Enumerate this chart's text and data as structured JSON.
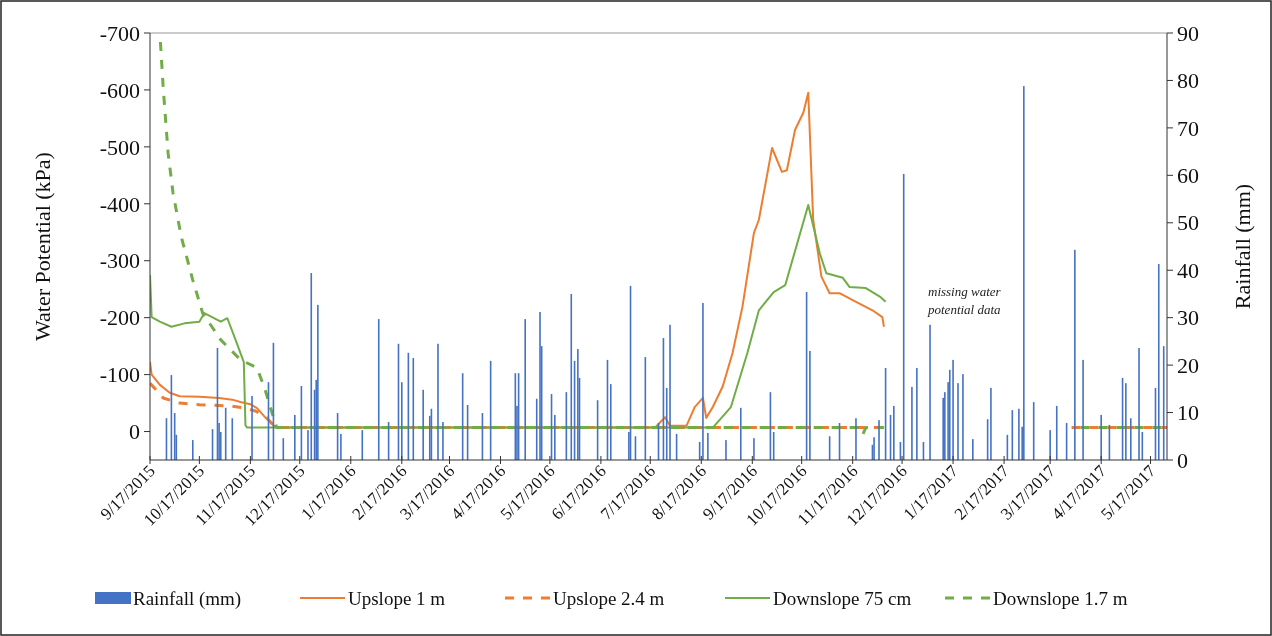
{
  "chart_data": {
    "type": "line",
    "ylabel": "Water Potential (kPa)",
    "y2label": "Rainfall (mm)",
    "xlim": [
      "2015-09-17",
      "2017-05-27"
    ],
    "xticks": [
      {
        "value": "2015-09-17",
        "label": "9/17/2015"
      },
      {
        "value": "2015-10-17",
        "label": "10/17/2015"
      },
      {
        "value": "2015-11-17",
        "label": "11/17/2015"
      },
      {
        "value": "2015-12-17",
        "label": "12/17/2015"
      },
      {
        "value": "2016-01-17",
        "label": "1/17/2016"
      },
      {
        "value": "2016-02-17",
        "label": "2/17/2016"
      },
      {
        "value": "2016-03-17",
        "label": "3/17/2016"
      },
      {
        "value": "2016-04-17",
        "label": "4/17/2016"
      },
      {
        "value": "2016-05-17",
        "label": "5/17/2016"
      },
      {
        "value": "2016-06-17",
        "label": "6/17/2016"
      },
      {
        "value": "2016-07-17",
        "label": "7/17/2016"
      },
      {
        "value": "2016-08-17",
        "label": "8/17/2016"
      },
      {
        "value": "2016-09-17",
        "label": "9/17/2016"
      },
      {
        "value": "2016-10-17",
        "label": "10/17/2016"
      },
      {
        "value": "2016-11-17",
        "label": "11/17/2016"
      },
      {
        "value": "2016-12-17",
        "label": "12/17/2016"
      },
      {
        "value": "2017-01-17",
        "label": "1/17/2017"
      },
      {
        "value": "2017-02-17",
        "label": "2/17/2017"
      },
      {
        "value": "2017-03-17",
        "label": "3/17/2017"
      },
      {
        "value": "2017-04-17",
        "label": "4/17/2017"
      },
      {
        "value": "2017-05-17",
        "label": "5/17/2017"
      }
    ],
    "ylim": [
      50,
      -700
    ],
    "yticks": [
      -700,
      -600,
      -500,
      -400,
      -300,
      -200,
      -100,
      0
    ],
    "y2lim": [
      0,
      90
    ],
    "y2ticks": [
      0,
      10,
      20,
      30,
      40,
      50,
      60,
      70,
      80,
      90
    ],
    "grid": false,
    "legend": "bottom",
    "annotations": [
      "missing water potential data"
    ],
    "series": [
      {
        "name": "Rainfall (mm)",
        "type": "bar",
        "axis": "y2",
        "color": "#4472c4",
        "x": [
          "2015-09-27",
          "2015-09-30",
          "2015-10-02",
          "2015-10-03",
          "2015-10-13",
          "2015-10-25",
          "2015-10-28",
          "2015-10-29",
          "2015-10-30",
          "2015-11-02",
          "2015-11-06",
          "2015-11-18",
          "2015-11-28",
          "2015-12-01",
          "2015-12-07",
          "2015-12-14",
          "2015-12-18",
          "2015-12-22",
          "2015-12-24",
          "2015-12-26",
          "2015-12-27",
          "2015-12-28",
          "2016-01-09",
          "2016-01-11",
          "2016-01-24",
          "2016-02-03",
          "2016-02-09",
          "2016-02-15",
          "2016-02-17",
          "2016-02-21",
          "2016-02-24",
          "2016-03-01",
          "2016-03-05",
          "2016-03-06",
          "2016-03-10",
          "2016-03-13",
          "2016-03-25",
          "2016-03-28",
          "2016-04-06",
          "2016-04-11",
          "2016-04-26",
          "2016-04-27",
          "2016-04-28",
          "2016-05-02",
          "2016-05-09",
          "2016-05-11",
          "2016-05-12",
          "2016-05-18",
          "2016-05-20",
          "2016-05-27",
          "2016-05-30",
          "2016-06-01",
          "2016-06-03",
          "2016-06-04",
          "2016-06-15",
          "2016-06-21",
          "2016-06-23",
          "2016-07-04",
          "2016-07-05",
          "2016-07-08",
          "2016-07-14",
          "2016-07-22",
          "2016-07-25",
          "2016-07-27",
          "2016-07-29",
          "2016-08-02",
          "2016-08-16",
          "2016-08-18",
          "2016-08-21",
          "2016-09-01",
          "2016-09-10",
          "2016-09-18",
          "2016-09-28",
          "2016-09-30",
          "2016-10-20",
          "2016-10-22",
          "2016-11-03",
          "2016-11-09",
          "2016-11-19",
          "2016-11-29",
          "2016-11-30",
          "2016-12-03",
          "2016-12-07",
          "2016-12-10",
          "2016-12-12",
          "2016-12-16",
          "2016-12-18",
          "2016-12-23",
          "2016-12-26",
          "2016-12-30",
          "2017-01-03",
          "2017-01-11",
          "2017-01-12",
          "2017-01-14",
          "2017-01-15",
          "2017-01-17",
          "2017-01-20",
          "2017-01-23",
          "2017-01-29",
          "2017-02-07",
          "2017-02-09",
          "2017-02-19",
          "2017-02-22",
          "2017-02-26",
          "2017-02-28",
          "2017-03-01",
          "2017-03-07",
          "2017-03-17",
          "2017-03-21",
          "2017-03-27",
          "2017-04-01",
          "2017-04-06",
          "2017-04-17",
          "2017-04-22",
          "2017-04-30",
          "2017-05-02",
          "2017-05-05",
          "2017-05-10",
          "2017-05-12",
          "2017-05-20",
          "2017-05-22",
          "2017-05-25"
        ],
        "values": [
          8.8,
          17.9,
          9.9,
          5.3,
          4.2,
          6.5,
          23.6,
          7.8,
          5.9,
          11,
          8.8,
          13.5,
          16.4,
          24.7,
          4.6,
          9.5,
          15.6,
          6.3,
          39.4,
          14.8,
          16.9,
          32.7,
          9.9,
          5.5,
          6.3,
          29.7,
          8,
          24.5,
          16.4,
          22.6,
          21.5,
          14.8,
          9.3,
          10.8,
          24.5,
          8,
          18.3,
          11.6,
          9.9,
          20.9,
          18.3,
          11.4,
          18.3,
          29.7,
          12.9,
          31.2,
          24,
          13.9,
          9.5,
          14.3,
          35,
          20.9,
          23.4,
          17.3,
          12.6,
          21.1,
          16,
          5.9,
          36.7,
          5,
          21.7,
          7.8,
          25.7,
          15.2,
          28.5,
          5.5,
          3.8,
          33.1,
          5.7,
          4.2,
          11,
          4.6,
          14.3,
          5.9,
          35.4,
          23,
          5,
          7.8,
          8.8,
          3.2,
          4.8,
          8.4,
          19.4,
          9.5,
          11.4,
          3.8,
          60.3,
          15.4,
          19.4,
          3.8,
          28.5,
          13.1,
          14.3,
          16.4,
          19,
          21.1,
          16.2,
          18.1,
          4.4,
          8.6,
          15.2,
          5.3,
          10.5,
          10.8,
          7,
          78.8,
          12.2,
          6.3,
          11.4,
          7.8,
          44.3,
          21.1,
          9.5,
          7.4,
          17.3,
          16.2,
          8.8,
          23.6,
          5.9,
          15.2,
          41.3,
          24
        ]
      },
      {
        "name": "Upslope 1 m",
        "color": "#ed7d31",
        "line_style": "solid",
        "x": [
          "2015-09-17",
          "2015-09-18",
          "2015-09-23",
          "2015-09-29",
          "2015-10-05",
          "2015-10-17",
          "2015-10-29",
          "2015-11-06",
          "2015-11-11",
          "2015-11-17",
          "2015-11-21",
          "2015-11-26",
          "2015-12-01",
          "2015-12-03",
          "2016-07-20",
          "2016-07-26",
          "2016-07-29",
          "2016-08-08",
          "2016-08-13",
          "2016-08-18",
          "2016-08-20",
          "2016-08-24",
          "2016-08-30",
          "2016-09-05",
          "2016-09-11",
          "2016-09-18",
          "2016-09-21",
          "2016-09-29",
          "2016-10-05",
          "2016-10-08",
          "2016-10-13",
          "2016-10-18",
          "2016-10-21",
          "2016-10-24",
          "2016-10-29",
          "2016-11-03",
          "2016-11-09",
          "2016-11-17",
          "2016-11-29",
          "2016-12-05",
          "2016-12-06"
        ],
        "values": [
          -122,
          -100,
          -82,
          -68,
          -62,
          -61,
          -59,
          -56,
          -52,
          -48,
          -41,
          -25,
          -11,
          -7,
          -7,
          -25,
          -10,
          -10,
          -43,
          -59,
          -24,
          -43,
          -79,
          -138,
          -219,
          -349,
          -372,
          -498,
          -456,
          -459,
          -530,
          -560,
          -595,
          -372,
          -272,
          -243,
          -243,
          -231,
          -213,
          -201,
          -184
        ]
      },
      {
        "name": "Upslope 2.4 m",
        "color": "#ed7d31",
        "line_style": "dashed",
        "x": [
          "2015-09-17",
          "2015-09-25",
          "2015-10-05",
          "2015-10-17",
          "2015-11-05",
          "2015-11-14",
          "2015-11-20",
          "2015-11-26",
          "2015-12-01",
          "2015-12-03",
          "2016-12-06",
          "2017-01-15",
          "2017-03-30",
          "2017-05-27"
        ],
        "values": [
          -85,
          -59,
          -50,
          -47,
          -45,
          -41,
          -36,
          -27,
          -11,
          -7,
          -7,
          null,
          -7,
          -7
        ]
      },
      {
        "name": "Downslope 75 cm",
        "color": "#70ad47",
        "line_style": "solid",
        "x": [
          "2015-09-17",
          "2015-09-18",
          "2015-09-23",
          "2015-09-30",
          "2015-10-08",
          "2015-10-17",
          "2015-10-20",
          "2015-10-30",
          "2015-11-03",
          "2015-11-08",
          "2015-11-13",
          "2015-11-14",
          "2015-11-15",
          "2016-08-24",
          "2016-09-04",
          "2016-09-14",
          "2016-09-21",
          "2016-09-30",
          "2016-10-07",
          "2016-10-21",
          "2016-10-28",
          "2016-11-01",
          "2016-11-11",
          "2016-11-15",
          "2016-11-25",
          "2016-12-04",
          "2016-12-07"
        ],
        "values": [
          -275,
          -201,
          -193,
          -184,
          -190,
          -193,
          -208,
          -193,
          -199,
          -161,
          -122,
          -11,
          -7,
          -7,
          -43,
          -138,
          -213,
          -245,
          -257,
          -398,
          -313,
          -278,
          -270,
          -254,
          -252,
          -236,
          -228
        ]
      },
      {
        "name": "Downslope 1.7 m",
        "color": "#70ad47",
        "line_style": "dashed",
        "x": [
          "2015-09-23",
          "2015-09-25",
          "2015-09-28",
          "2015-10-01",
          "2015-10-06",
          "2015-10-13",
          "2015-10-19",
          "2015-10-30",
          "2015-11-11",
          "2015-11-21",
          "2015-11-26",
          "2015-12-01",
          "2015-12-03",
          "2016-11-20",
          "2016-11-23",
          "2016-11-25",
          "2016-12-06",
          "2017-01-15",
          "2017-03-30",
          "2017-05-27"
        ],
        "values": [
          -700,
          -605,
          -489,
          -419,
          -342,
          -266,
          -208,
          -161,
          -126,
          -112,
          -73,
          -25,
          -7,
          -7,
          6,
          -7,
          -7,
          null,
          -7,
          -7
        ]
      }
    ]
  }
}
